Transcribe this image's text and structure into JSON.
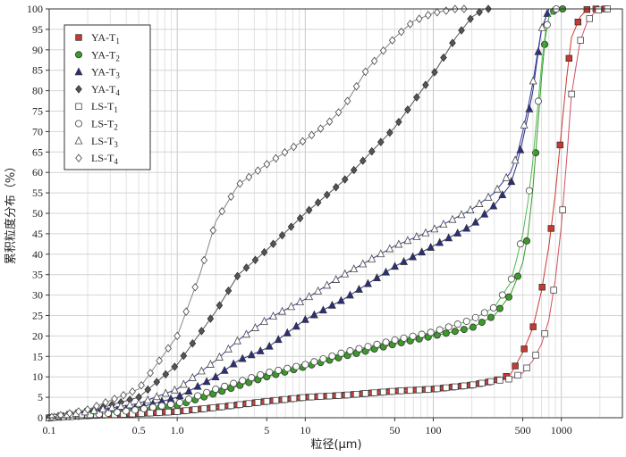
{
  "chart_data": {
    "type": "line",
    "title": "",
    "xlabel": "粒径(μm)",
    "ylabel": "累积粒度分布（%）",
    "xscale": "log",
    "xlim": [
      0.1,
      3000
    ],
    "ylim": [
      0,
      100
    ],
    "grid": true,
    "legend_position": "top-left",
    "x_ticks": [
      {
        "value": 0.1,
        "label": "0.1"
      },
      {
        "value": 0.5,
        "label": "0.5"
      },
      {
        "value": 1,
        "label": "1.0"
      },
      {
        "value": 5,
        "label": "5"
      },
      {
        "value": 10,
        "label": "10"
      },
      {
        "value": 50,
        "label": "50"
      },
      {
        "value": 100,
        "label": "100"
      },
      {
        "value": 500,
        "label": "500"
      },
      {
        "value": 1000,
        "label": "1000"
      }
    ],
    "y_ticks": [
      0,
      5,
      10,
      15,
      20,
      25,
      30,
      35,
      40,
      45,
      50,
      55,
      60,
      65,
      70,
      75,
      80,
      85,
      90,
      95,
      100
    ],
    "series": [
      {
        "name": "YA-T",
        "sub": "1",
        "color": "#c83a30",
        "marker": "square",
        "filled": true,
        "x": [
          0.1,
          0.2,
          0.5,
          1,
          2,
          5,
          10,
          20,
          50,
          100,
          200,
          300,
          400,
          500,
          600,
          700,
          800,
          900,
          1000,
          1100,
          1200,
          1400,
          1600,
          1800,
          2000,
          2200
        ],
        "y": [
          0,
          0.5,
          1,
          1.5,
          2.5,
          4,
          5,
          5.5,
          6.5,
          7,
          8,
          9,
          10.5,
          16,
          22,
          31,
          42,
          55,
          70,
          83,
          93,
          98,
          100,
          100,
          100,
          100
        ]
      },
      {
        "name": "YA-T",
        "sub": "2",
        "color": "#3c9a2a",
        "marker": "circle",
        "filled": true,
        "x": [
          0.1,
          0.2,
          0.5,
          1,
          2,
          5,
          10,
          20,
          50,
          100,
          200,
          300,
          400,
          450,
          500,
          550,
          600,
          650,
          700,
          750,
          800,
          900,
          1000,
          1200
        ],
        "y": [
          0,
          0.5,
          1.5,
          3,
          6,
          10,
          12.5,
          15,
          18,
          20,
          22,
          25,
          30,
          34,
          38,
          45,
          56,
          70,
          83,
          93,
          98,
          100,
          100,
          100
        ]
      },
      {
        "name": "YA-T",
        "sub": "3",
        "color": "#2a2f7e",
        "marker": "triangle",
        "filled": true,
        "x": [
          0.1,
          0.2,
          0.5,
          1,
          2,
          3,
          5,
          10,
          20,
          50,
          100,
          200,
          300,
          400,
          450,
          500,
          550,
          600,
          650,
          700,
          800
        ],
        "y": [
          0,
          1,
          2.5,
          5,
          10,
          14,
          17,
          24,
          29,
          37,
          42,
          47,
          52,
          57,
          62,
          68,
          74,
          80,
          88,
          95,
          100
        ]
      },
      {
        "name": "YA-T",
        "sub": "4",
        "color": "#555555",
        "marker": "diamond",
        "filled": true,
        "x": [
          0.1,
          0.2,
          0.5,
          1,
          2,
          3,
          5,
          10,
          20,
          50,
          100,
          150,
          200,
          250,
          300
        ],
        "y": [
          0,
          1.5,
          5,
          13,
          26,
          35,
          41,
          50,
          58,
          71,
          84,
          93,
          98,
          100,
          100
        ]
      },
      {
        "name": "LS-T",
        "sub": "1",
        "color": "#d05060",
        "marker": "square",
        "filled": false,
        "x": [
          0.1,
          0.2,
          0.5,
          1,
          2,
          5,
          10,
          20,
          50,
          100,
          200,
          300,
          400,
          500,
          600,
          700,
          800,
          900,
          1000,
          1100,
          1200,
          1400,
          1600,
          1800,
          2000,
          2300,
          2600
        ],
        "y": [
          0,
          0.5,
          1,
          1.5,
          2.5,
          4,
          5,
          5.5,
          6.5,
          7,
          8,
          9,
          9.5,
          11,
          14,
          18,
          24,
          34,
          47,
          63,
          79,
          92,
          97,
          99,
          100,
          100,
          100
        ]
      },
      {
        "name": "LS-T",
        "sub": "2",
        "color": "#4cbb52",
        "marker": "circle",
        "filled": false,
        "x": [
          0.1,
          0.2,
          0.5,
          1,
          2,
          5,
          10,
          20,
          50,
          100,
          200,
          300,
          400,
          450,
          500,
          550,
          600,
          650,
          700,
          750,
          800,
          900,
          1000
        ],
        "y": [
          0,
          0.5,
          2,
          3.5,
          7,
          11,
          13,
          16,
          19,
          21,
          24,
          27,
          33,
          39,
          45,
          53,
          63,
          75,
          86,
          94,
          98,
          100,
          100
        ]
      },
      {
        "name": "LS-T",
        "sub": "3",
        "color": "#3a3aa0",
        "marker": "triangle",
        "filled": false,
        "x": [
          0.1,
          0.2,
          0.5,
          1,
          2,
          3,
          5,
          10,
          20,
          50,
          100,
          200,
          300,
          400,
          450,
          500,
          550,
          600,
          650,
          700,
          800
        ],
        "y": [
          0,
          1.5,
          3.5,
          7,
          14,
          19,
          24,
          29,
          35,
          42,
          46,
          51,
          55,
          60,
          64,
          70,
          76,
          82,
          89,
          95,
          100
        ]
      },
      {
        "name": "LS-T",
        "sub": "4",
        "color": "#888888",
        "marker": "diamond",
        "filled": false,
        "x": [
          0.1,
          0.2,
          0.5,
          1,
          1.5,
          2,
          3,
          5,
          7,
          10,
          15,
          20,
          30,
          50,
          70,
          100,
          150,
          200
        ],
        "y": [
          0,
          2,
          7,
          20,
          35,
          48,
          57,
          62,
          65,
          68,
          72,
          76,
          85,
          93,
          97,
          99,
          100,
          100
        ]
      }
    ]
  }
}
